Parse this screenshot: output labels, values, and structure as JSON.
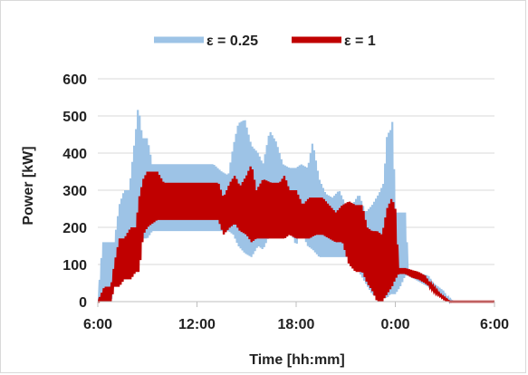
{
  "chart_data": {
    "type": "line",
    "xlabel": "Time [hh:mm]",
    "ylabel": "Power [kW]",
    "ylim": [
      0,
      600
    ],
    "yticks": [
      0,
      100,
      200,
      300,
      400,
      500,
      600
    ],
    "xlim_hours": [
      6,
      30
    ],
    "xticks": [
      {
        "hour": 6,
        "label": "6:00"
      },
      {
        "hour": 12,
        "label": "12:00"
      },
      {
        "hour": 18,
        "label": "18:00"
      },
      {
        "hour": 24,
        "label": "0:00"
      },
      {
        "hour": 30,
        "label": "6:00"
      }
    ],
    "grid": "horizontal",
    "legend": "top",
    "series": [
      {
        "name": "ε = 0.25",
        "color": "#9dc3e6",
        "band": [
          [
            6.0,
            0,
            0
          ],
          [
            6.3,
            0,
            160
          ],
          [
            6.8,
            0,
            160
          ],
          [
            7.0,
            60,
            160
          ],
          [
            7.3,
            60,
            260
          ],
          [
            7.6,
            60,
            300
          ],
          [
            7.9,
            60,
            300
          ],
          [
            8.1,
            100,
            380
          ],
          [
            8.3,
            140,
            460
          ],
          [
            8.45,
            160,
            530
          ],
          [
            8.7,
            170,
            440
          ],
          [
            9.0,
            170,
            440
          ],
          [
            9.3,
            190,
            370
          ],
          [
            10.0,
            190,
            370
          ],
          [
            11.0,
            190,
            370
          ],
          [
            12.0,
            190,
            370
          ],
          [
            13.0,
            190,
            370
          ],
          [
            13.5,
            190,
            350
          ],
          [
            13.9,
            190,
            340
          ],
          [
            14.2,
            180,
            420
          ],
          [
            14.5,
            150,
            480
          ],
          [
            14.9,
            130,
            490
          ],
          [
            15.3,
            120,
            420
          ],
          [
            15.7,
            150,
            400
          ],
          [
            16.0,
            140,
            370
          ],
          [
            16.4,
            180,
            460
          ],
          [
            16.8,
            170,
            430
          ],
          [
            17.2,
            200,
            370
          ],
          [
            17.6,
            200,
            360
          ],
          [
            18.0,
            150,
            360
          ],
          [
            18.3,
            190,
            370
          ],
          [
            18.7,
            150,
            360
          ],
          [
            19.0,
            140,
            430
          ],
          [
            19.4,
            120,
            330
          ],
          [
            19.8,
            120,
            290
          ],
          [
            20.2,
            120,
            280
          ],
          [
            20.6,
            120,
            300
          ],
          [
            21.0,
            120,
            260
          ],
          [
            21.4,
            120,
            260
          ],
          [
            21.8,
            80,
            290
          ],
          [
            22.2,
            50,
            240
          ],
          [
            22.6,
            20,
            260
          ],
          [
            23.0,
            10,
            290
          ],
          [
            23.3,
            10,
            320
          ],
          [
            23.5,
            10,
            450
          ],
          [
            23.7,
            20,
            460
          ],
          [
            23.85,
            20,
            490
          ],
          [
            24.0,
            20,
            240
          ],
          [
            24.3,
            40,
            240
          ],
          [
            24.6,
            70,
            240
          ],
          [
            24.8,
            70,
            80
          ],
          [
            25.2,
            60,
            80
          ],
          [
            25.6,
            50,
            75
          ],
          [
            26.0,
            40,
            70
          ],
          [
            26.3,
            30,
            50
          ],
          [
            26.6,
            20,
            40
          ],
          [
            26.9,
            10,
            30
          ],
          [
            27.2,
            0,
            10
          ],
          [
            27.5,
            0,
            0
          ],
          [
            30.0,
            0,
            0
          ]
        ]
      },
      {
        "name": "ε = 1",
        "color": "#c00000",
        "band": [
          [
            6.0,
            0,
            0
          ],
          [
            6.4,
            0,
            40
          ],
          [
            6.8,
            0,
            40
          ],
          [
            7.0,
            40,
            100
          ],
          [
            7.3,
            40,
            170
          ],
          [
            7.6,
            60,
            170
          ],
          [
            8.0,
            60,
            200
          ],
          [
            8.3,
            80,
            200
          ],
          [
            8.5,
            80,
            280
          ],
          [
            8.75,
            180,
            330
          ],
          [
            9.0,
            200,
            350
          ],
          [
            9.6,
            220,
            350
          ],
          [
            10.0,
            220,
            320
          ],
          [
            11.0,
            220,
            320
          ],
          [
            12.0,
            220,
            320
          ],
          [
            13.0,
            220,
            320
          ],
          [
            13.3,
            220,
            320
          ],
          [
            13.6,
            180,
            280
          ],
          [
            14.0,
            200,
            320
          ],
          [
            14.3,
            210,
            340
          ],
          [
            14.6,
            190,
            310
          ],
          [
            15.0,
            180,
            340
          ],
          [
            15.3,
            160,
            370
          ],
          [
            15.6,
            170,
            300
          ],
          [
            16.0,
            170,
            330
          ],
          [
            16.5,
            170,
            320
          ],
          [
            17.0,
            170,
            320
          ],
          [
            17.3,
            170,
            340
          ],
          [
            17.6,
            180,
            300
          ],
          [
            18.0,
            170,
            300
          ],
          [
            18.4,
            170,
            260
          ],
          [
            18.8,
            170,
            280
          ],
          [
            19.2,
            180,
            280
          ],
          [
            19.6,
            180,
            280
          ],
          [
            20.0,
            170,
            260
          ],
          [
            20.4,
            160,
            240
          ],
          [
            20.8,
            160,
            260
          ],
          [
            21.2,
            100,
            270
          ],
          [
            21.6,
            80,
            260
          ],
          [
            22.0,
            80,
            260
          ],
          [
            22.3,
            50,
            200
          ],
          [
            22.6,
            30,
            190
          ],
          [
            22.9,
            0,
            190
          ],
          [
            23.2,
            0,
            180
          ],
          [
            23.5,
            20,
            250
          ],
          [
            23.8,
            40,
            280
          ],
          [
            24.0,
            60,
            250
          ],
          [
            24.2,
            75,
            90
          ],
          [
            24.6,
            75,
            90
          ],
          [
            25.0,
            65,
            85
          ],
          [
            25.4,
            60,
            80
          ],
          [
            25.8,
            50,
            70
          ],
          [
            26.1,
            40,
            50
          ],
          [
            26.4,
            25,
            35
          ],
          [
            26.7,
            15,
            20
          ],
          [
            27.0,
            5,
            10
          ],
          [
            27.3,
            0,
            0
          ],
          [
            30.0,
            0,
            0
          ]
        ]
      }
    ]
  }
}
